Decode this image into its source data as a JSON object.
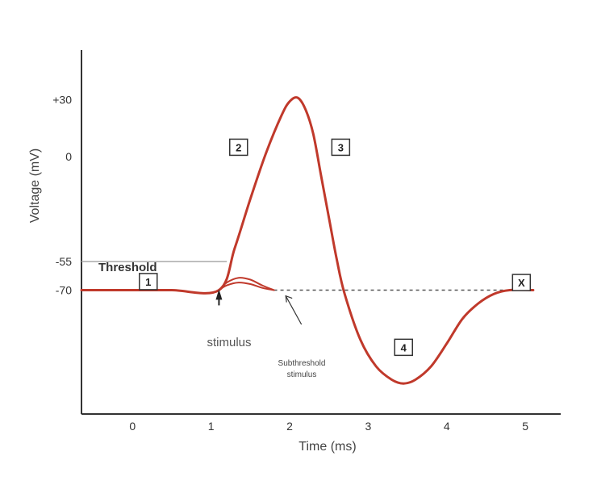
{
  "chart_data": {
    "type": "line",
    "xlabel": "Time (ms)",
    "ylabel": "Voltage (mV)",
    "xlim": [
      -0.65,
      5.45
    ],
    "ylim": [
      -135,
      56
    ],
    "x_ticks": [
      0,
      1,
      2,
      3,
      4,
      5
    ],
    "y_ticks": [
      {
        "value": 30,
        "label": "+30"
      },
      {
        "value": 0,
        "label": "0"
      },
      {
        "value": -55,
        "label": "-55"
      },
      {
        "value": -70,
        "label": "-70"
      }
    ],
    "threshold": {
      "value": -55,
      "label": "Threshold"
    },
    "resting_potential": -70,
    "series": [
      {
        "role": "action-potential",
        "color": "#c0392b",
        "x": [
          -0.65,
          0,
          0.5,
          1.1,
          1.3,
          1.5,
          1.7,
          1.9,
          2.0,
          2.1,
          2.2,
          2.3,
          2.4,
          2.5,
          2.6,
          2.7,
          2.9,
          3.1,
          3.3,
          3.45,
          3.6,
          3.8,
          4.0,
          4.2,
          4.4,
          4.6,
          4.8,
          5.1
        ],
        "y": [
          -70,
          -70,
          -70,
          -70,
          -48,
          -22,
          2,
          22,
          29,
          31,
          25,
          12,
          -10,
          -32,
          -54,
          -72,
          -96,
          -110,
          -117,
          -119,
          -117,
          -110,
          -98,
          -85,
          -77,
          -72,
          -70,
          -70
        ]
      },
      {
        "role": "subthreshold-1",
        "color": "#c0392b",
        "x": [
          1.1,
          1.2,
          1.35,
          1.5,
          1.65,
          1.8
        ],
        "y": [
          -70,
          -66,
          -63.5,
          -64.5,
          -67.5,
          -70
        ]
      },
      {
        "role": "subthreshold-2",
        "color": "#c0392b",
        "x": [
          1.1,
          1.2,
          1.35,
          1.5,
          1.65,
          1.8
        ],
        "y": [
          -70,
          -67.5,
          -66,
          -66.8,
          -68.8,
          -70
        ]
      }
    ],
    "resting_dashed_x": [
      1.8,
      5.0
    ],
    "boxes": [
      {
        "label": "1",
        "x": 0.2,
        "y": -65.5
      },
      {
        "label": "2",
        "x": 1.35,
        "y": 5
      },
      {
        "label": "3",
        "x": 2.65,
        "y": 5
      },
      {
        "label": "4",
        "x": 3.45,
        "y": -100
      },
      {
        "label": "X",
        "x": 4.95,
        "y": -66
      }
    ],
    "annotations": {
      "stimulus": {
        "label": "stimulus",
        "x": 1.1,
        "y": -82
      },
      "subthreshold_line1": "Subthreshold",
      "subthreshold_line2": "stimulus",
      "subthreshold_x": 2.1,
      "subthreshold_y": -94
    },
    "grid": false,
    "legend": "none"
  }
}
